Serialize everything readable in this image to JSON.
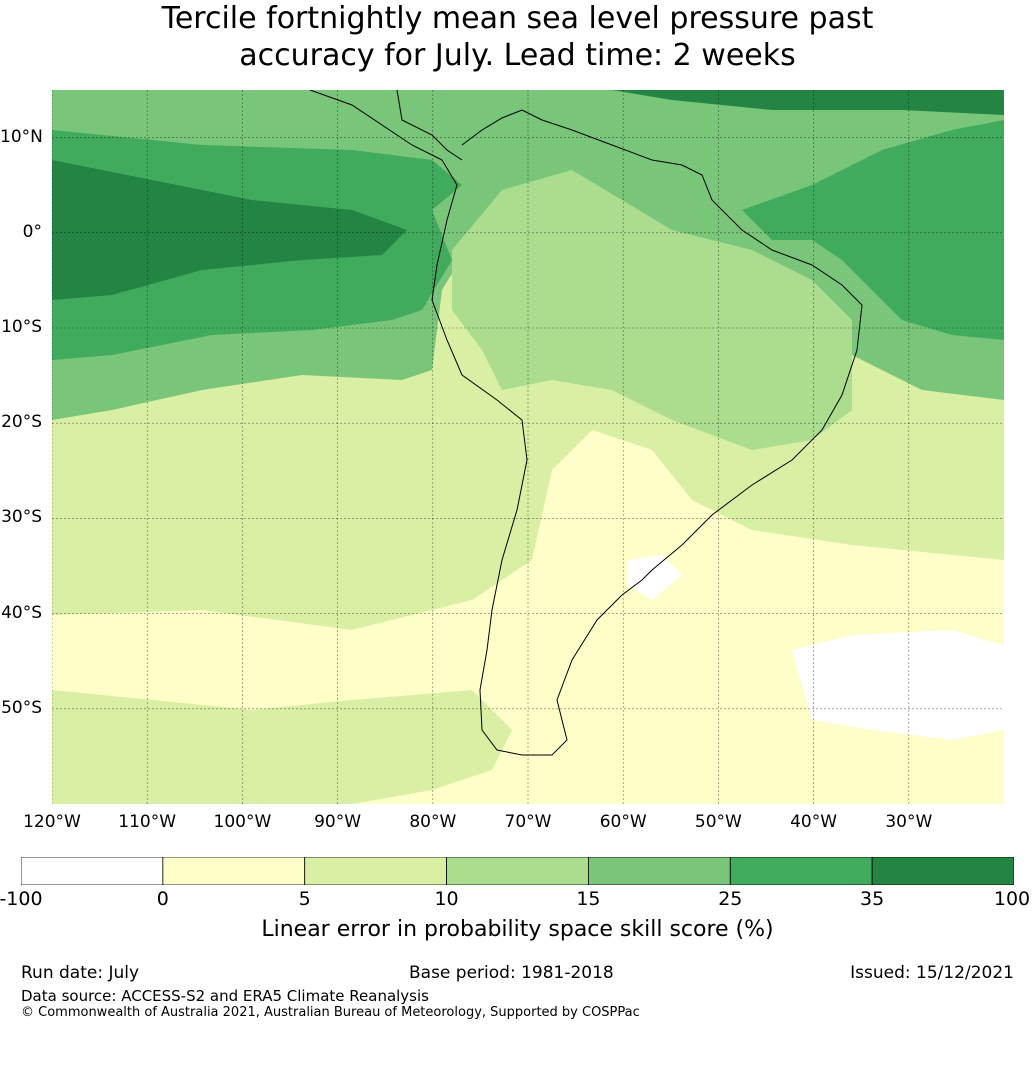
{
  "title": {
    "line1": "Tercile fortnightly mean sea level pressure past",
    "line2": "accuracy for July. Lead time: 2 weeks"
  },
  "map": {
    "lat_labels": [
      "10°N",
      "0°",
      "10°S",
      "20°S",
      "30°S",
      "40°S",
      "50°S"
    ],
    "lon_labels": [
      "120°W",
      "110°W",
      "100°W",
      "90°W",
      "80°W",
      "70°W",
      "60°W",
      "50°W",
      "40°W",
      "30°W"
    ],
    "extent": {
      "lon": [
        -120,
        -20
      ],
      "lat": [
        -60,
        15
      ]
    },
    "gridlines": true
  },
  "colorbar": {
    "ticks": [
      "-100",
      "0",
      "5",
      "10",
      "15",
      "25",
      "35",
      "100"
    ],
    "colors": [
      "#ffffff",
      "#fefec9",
      "#d9efa3",
      "#acdc8e",
      "#79c57a",
      "#41ab5d",
      "#238443"
    ],
    "label": "Linear error in probability space skill score (%)"
  },
  "footer": {
    "run_date": "Run date: July",
    "base_period": "Base period: 1981-2018",
    "issued": "Issued: 15/12/2021",
    "data_source": "Data source: ACCESS-S2 and ERA5 Climate Reanalysis",
    "copyright": "© Commonwealth of Australia 2021, Australian Bureau of Meteorology, Supported by COSPPac"
  }
}
